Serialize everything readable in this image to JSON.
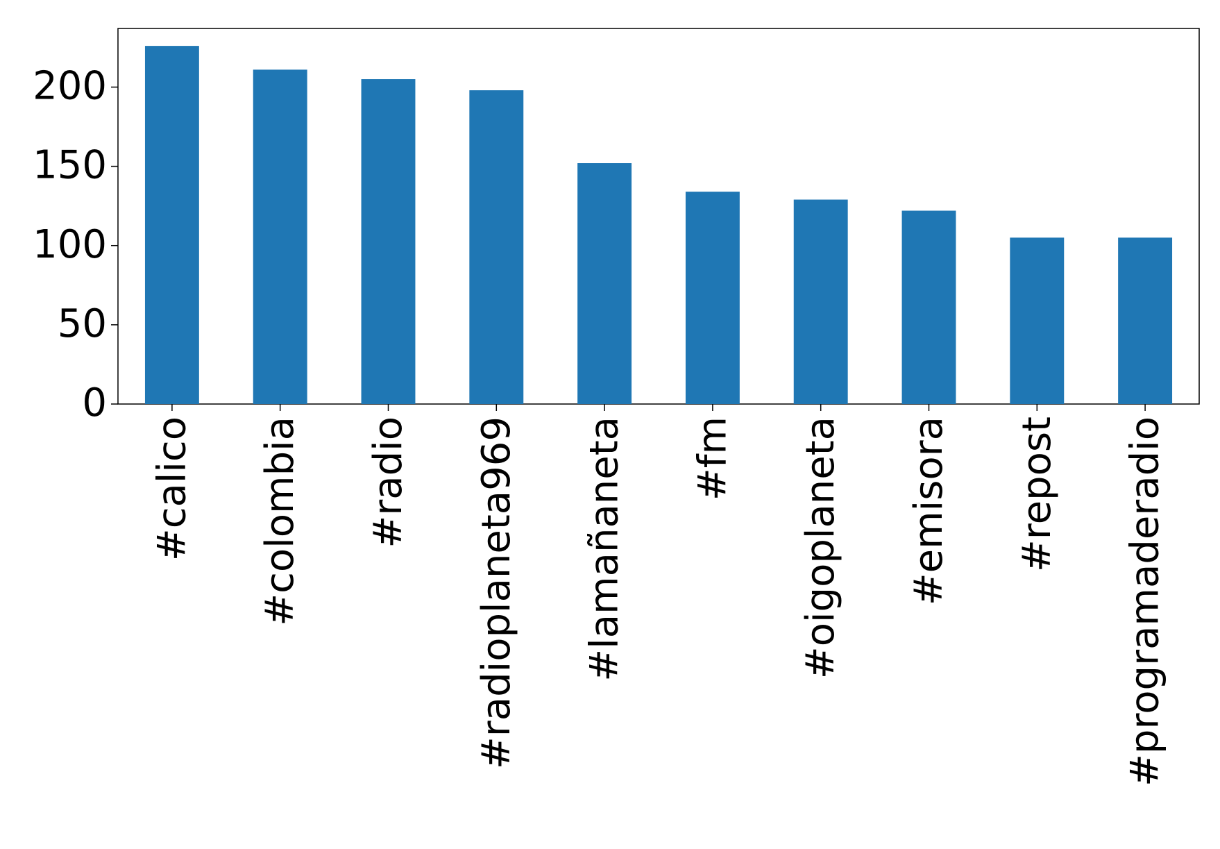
{
  "chart_data": {
    "type": "bar",
    "categories": [
      "#calico",
      "#colombia",
      "#radio",
      "#radioplaneta969",
      "#lamañaneta",
      "#fm",
      "#oigoplaneta",
      "#emisora",
      "#repost",
      "#programaderadio"
    ],
    "values": [
      226,
      211,
      205,
      198,
      152,
      134,
      129,
      122,
      105,
      105
    ],
    "color": "#1f77b4",
    "ylim": [
      0,
      237
    ],
    "yticks": [
      0,
      50,
      100,
      150,
      200
    ],
    "grid": false
  }
}
